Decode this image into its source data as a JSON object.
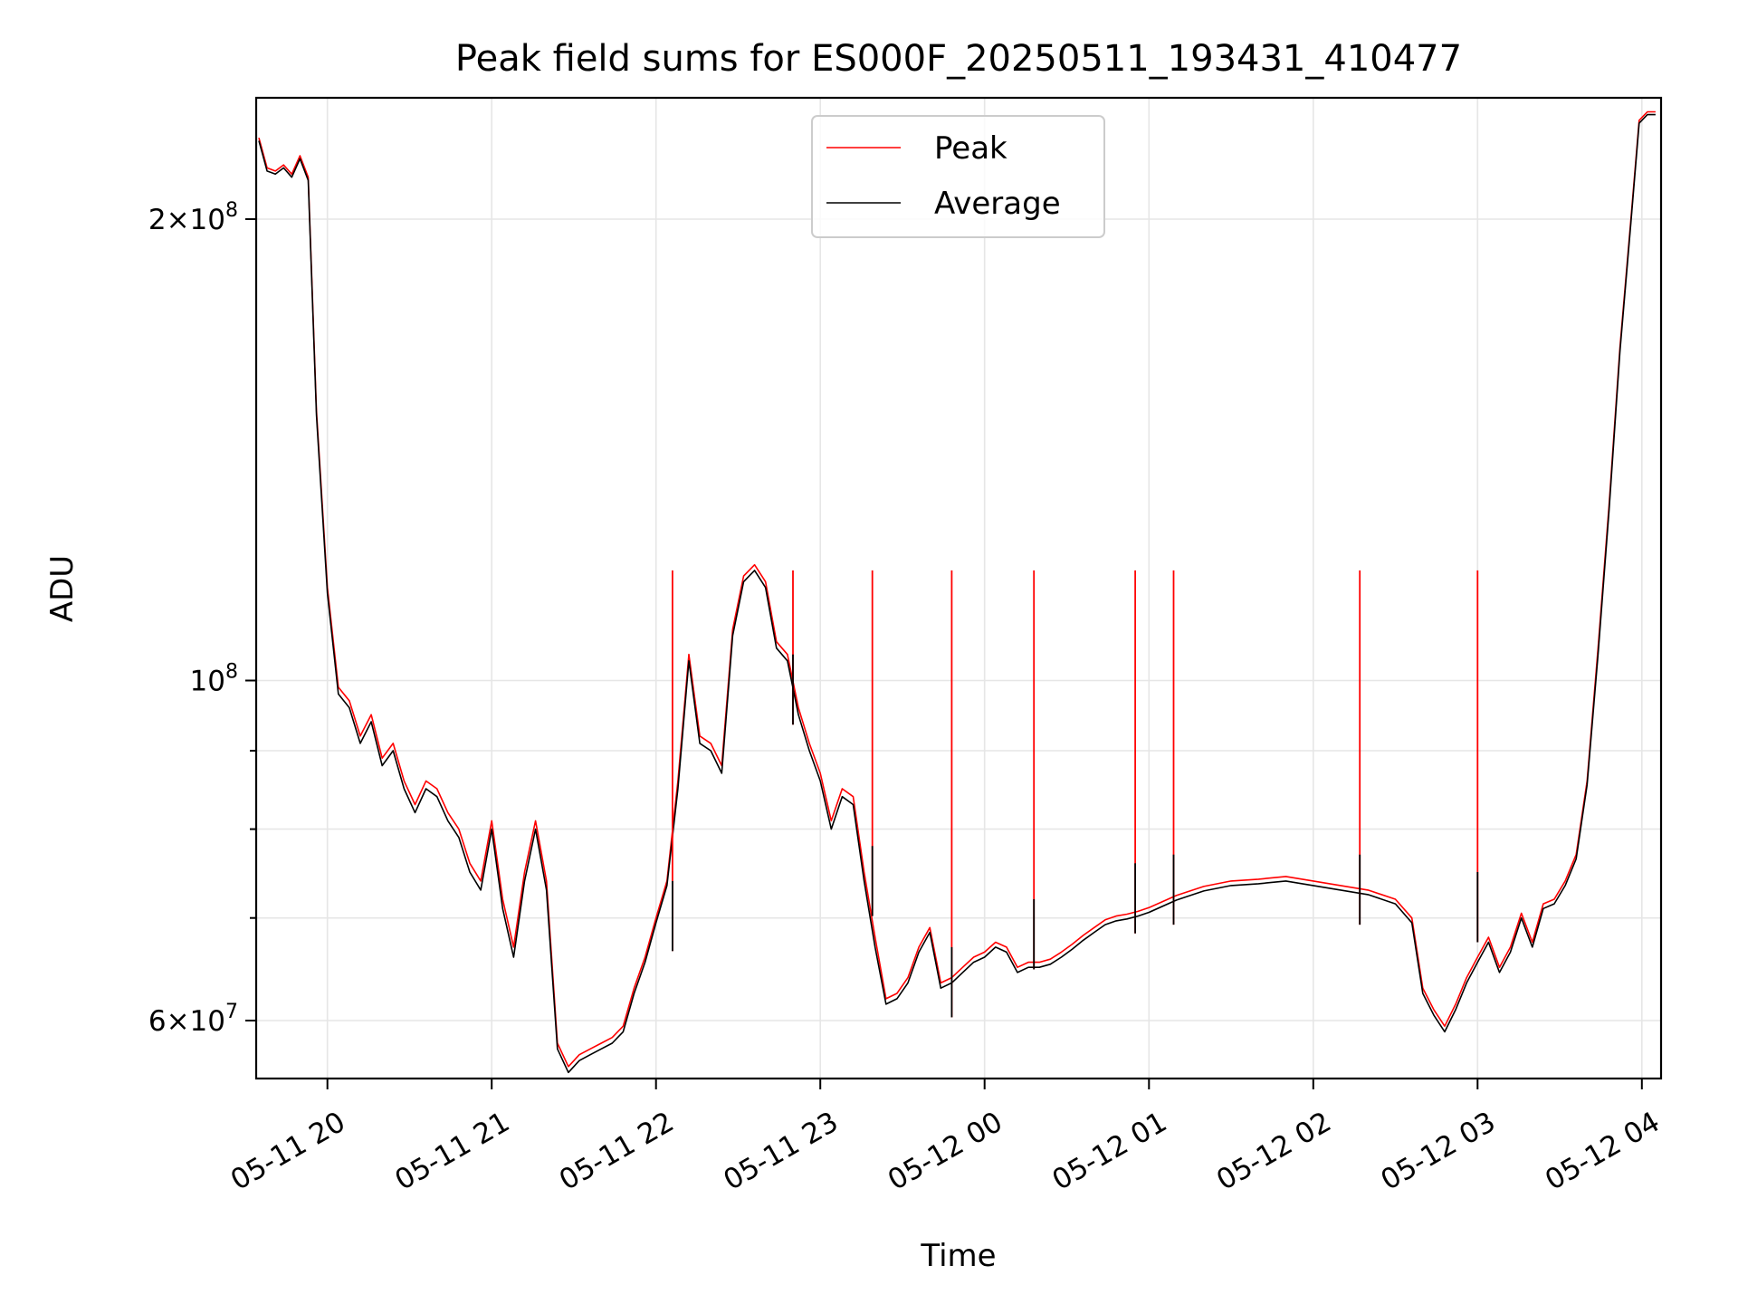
{
  "chart_data": {
    "type": "line",
    "title": "Peak field sums for ES000F_20250511_193431_410477",
    "xlabel": "Time",
    "ylabel": "ADU",
    "yscale": "log",
    "xlim": [
      "2025-05-11 19:34",
      "2025-05-12 04:07"
    ],
    "ylim": [
      55000000,
      240000000
    ],
    "grid": true,
    "legend_position": "top-center",
    "x_ticks": [
      {
        "value": "2025-05-11 20:00",
        "label": "05-11 20"
      },
      {
        "value": "2025-05-11 21:00",
        "label": "05-11 21"
      },
      {
        "value": "2025-05-11 22:00",
        "label": "05-11 22"
      },
      {
        "value": "2025-05-11 23:00",
        "label": "05-11 23"
      },
      {
        "value": "2025-05-12 00:00",
        "label": "05-12 00"
      },
      {
        "value": "2025-05-12 01:00",
        "label": "05-12 01"
      },
      {
        "value": "2025-05-12 02:00",
        "label": "05-12 02"
      },
      {
        "value": "2025-05-12 03:00",
        "label": "05-12 03"
      },
      {
        "value": "2025-05-12 04:00",
        "label": "05-12 04"
      }
    ],
    "y_ticks": [
      {
        "value": 60000000,
        "base": "6",
        "exp": "7"
      },
      {
        "value": 100000000,
        "base": "",
        "exp": "8"
      },
      {
        "value": 200000000,
        "base": "2",
        "exp": "8"
      }
    ],
    "y_minor_ticks": [
      70000000,
      80000000,
      90000000
    ],
    "x": [
      "2025-05-11 19:35",
      "2025-05-11 19:38",
      "2025-05-11 19:41",
      "2025-05-11 19:44",
      "2025-05-11 19:47",
      "2025-05-11 19:50",
      "2025-05-11 19:53",
      "2025-05-11 19:56",
      "2025-05-11 20:00",
      "2025-05-11 20:04",
      "2025-05-11 20:08",
      "2025-05-11 20:12",
      "2025-05-11 20:16",
      "2025-05-11 20:20",
      "2025-05-11 20:24",
      "2025-05-11 20:28",
      "2025-05-11 20:32",
      "2025-05-11 20:36",
      "2025-05-11 20:40",
      "2025-05-11 20:44",
      "2025-05-11 20:48",
      "2025-05-11 20:52",
      "2025-05-11 20:56",
      "2025-05-11 21:00",
      "2025-05-11 21:04",
      "2025-05-11 21:08",
      "2025-05-11 21:12",
      "2025-05-11 21:16",
      "2025-05-11 21:20",
      "2025-05-11 21:24",
      "2025-05-11 21:28",
      "2025-05-11 21:32",
      "2025-05-11 21:36",
      "2025-05-11 21:40",
      "2025-05-11 21:44",
      "2025-05-11 21:48",
      "2025-05-11 21:52",
      "2025-05-11 21:56",
      "2025-05-11 22:00",
      "2025-05-11 22:04",
      "2025-05-11 22:08",
      "2025-05-11 22:12",
      "2025-05-11 22:16",
      "2025-05-11 22:20",
      "2025-05-11 22:24",
      "2025-05-11 22:28",
      "2025-05-11 22:32",
      "2025-05-11 22:36",
      "2025-05-11 22:40",
      "2025-05-11 22:44",
      "2025-05-11 22:48",
      "2025-05-11 22:52",
      "2025-05-11 22:56",
      "2025-05-11 23:00",
      "2025-05-11 23:04",
      "2025-05-11 23:08",
      "2025-05-11 23:12",
      "2025-05-11 23:16",
      "2025-05-11 23:20",
      "2025-05-11 23:24",
      "2025-05-11 23:28",
      "2025-05-11 23:32",
      "2025-05-11 23:36",
      "2025-05-11 23:40",
      "2025-05-11 23:44",
      "2025-05-11 23:48",
      "2025-05-11 23:52",
      "2025-05-11 23:56",
      "2025-05-12 00:00",
      "2025-05-12 00:04",
      "2025-05-12 00:08",
      "2025-05-12 00:12",
      "2025-05-12 00:16",
      "2025-05-12 00:20",
      "2025-05-12 00:24",
      "2025-05-12 00:28",
      "2025-05-12 00:32",
      "2025-05-12 00:36",
      "2025-05-12 00:40",
      "2025-05-12 00:44",
      "2025-05-12 00:48",
      "2025-05-12 00:52",
      "2025-05-12 00:56",
      "2025-05-12 01:00",
      "2025-05-12 01:10",
      "2025-05-12 01:20",
      "2025-05-12 01:30",
      "2025-05-12 01:40",
      "2025-05-12 01:50",
      "2025-05-12 02:00",
      "2025-05-12 02:10",
      "2025-05-12 02:20",
      "2025-05-12 02:30",
      "2025-05-12 02:36",
      "2025-05-12 02:40",
      "2025-05-12 02:44",
      "2025-05-12 02:48",
      "2025-05-12 02:52",
      "2025-05-12 02:56",
      "2025-05-12 03:00",
      "2025-05-12 03:04",
      "2025-05-12 03:08",
      "2025-05-12 03:12",
      "2025-05-12 03:16",
      "2025-05-12 03:20",
      "2025-05-12 03:24",
      "2025-05-12 03:28",
      "2025-05-12 03:32",
      "2025-05-12 03:36",
      "2025-05-12 03:40",
      "2025-05-12 03:44",
      "2025-05-12 03:48",
      "2025-05-12 03:52",
      "2025-05-12 03:56",
      "2025-05-12 03:59",
      "2025-05-12 04:02",
      "2025-05-12 04:05"
    ],
    "series": [
      {
        "name": "Peak",
        "color": "#ff0000",
        "values": [
          226000000,
          216000000,
          215000000,
          217000000,
          214000000,
          220000000,
          213000000,
          150000000,
          115000000,
          99000000,
          97000000,
          92000000,
          95000000,
          89000000,
          91000000,
          86000000,
          83000000,
          86000000,
          85000000,
          82000000,
          80000000,
          76000000,
          74000000,
          81000000,
          72000000,
          67000000,
          75000000,
          81000000,
          74000000,
          58000000,
          56000000,
          57000000,
          57500000,
          58000000,
          58500000,
          59500000,
          63000000,
          66000000,
          70000000,
          74000000,
          86000000,
          104000000,
          92000000,
          91000000,
          88000000,
          108000000,
          117000000,
          119000000,
          116000000,
          106000000,
          104000000,
          96000000,
          91000000,
          87000000,
          81000000,
          85000000,
          84000000,
          75000000,
          68000000,
          62000000,
          62500000,
          64000000,
          67000000,
          69000000,
          63500000,
          64000000,
          65000000,
          66000000,
          66500000,
          67500000,
          67000000,
          65000000,
          65500000,
          65500000,
          65800000,
          66500000,
          67300000,
          68200000,
          69000000,
          69800000,
          70200000,
          70400000,
          70700000,
          71100000,
          72400000,
          73400000,
          74000000,
          74200000,
          74500000,
          74000000,
          73500000,
          73000000,
          72000000,
          70000000,
          63000000,
          61000000,
          59500000,
          61500000,
          64000000,
          66000000,
          68000000,
          65000000,
          67000000,
          70500000,
          67500000,
          71500000,
          72000000,
          74000000,
          77000000,
          86000000,
          105000000,
          130000000,
          165000000,
          200000000,
          232000000,
          235000000,
          235000000
        ]
      },
      {
        "name": "Average",
        "color": "#000000",
        "values": [
          225000000,
          215000000,
          214000000,
          216000000,
          213000000,
          219000000,
          212000000,
          149000000,
          114000000,
          98000000,
          96000000,
          91000000,
          94000000,
          88000000,
          90000000,
          85000000,
          82000000,
          85000000,
          84000000,
          81000000,
          79000000,
          75000000,
          73000000,
          80000000,
          71000000,
          66000000,
          74000000,
          80000000,
          73000000,
          57500000,
          55500000,
          56500000,
          57000000,
          57500000,
          58000000,
          59000000,
          62500000,
          65500000,
          69500000,
          73500000,
          85000000,
          103000000,
          91000000,
          90000000,
          87000000,
          107000000,
          116000000,
          118000000,
          115000000,
          105000000,
          103000000,
          95000000,
          90000000,
          86000000,
          80000000,
          84000000,
          83000000,
          74000000,
          67000000,
          61500000,
          62000000,
          63500000,
          66500000,
          68500000,
          63000000,
          63500000,
          64500000,
          65500000,
          66000000,
          67000000,
          66500000,
          64500000,
          65000000,
          65000000,
          65300000,
          66000000,
          66800000,
          67700000,
          68500000,
          69300000,
          69700000,
          69900000,
          70200000,
          70600000,
          71900000,
          72900000,
          73500000,
          73700000,
          74000000,
          73500000,
          73000000,
          72500000,
          71500000,
          69500000,
          62500000,
          60500000,
          59000000,
          61000000,
          63500000,
          65500000,
          67500000,
          64500000,
          66500000,
          70000000,
          67000000,
          71000000,
          71500000,
          73500000,
          76500000,
          85500000,
          104000000,
          129000000,
          164000000,
          199000000,
          231000000,
          234000000,
          234000000
        ]
      }
    ],
    "spikes": [
      {
        "x": "2025-05-11 22:06",
        "peak": 118000000,
        "average": 74000000
      },
      {
        "x": "2025-05-11 22:50",
        "peak": 118000000,
        "average": 104000000
      },
      {
        "x": "2025-05-11 23:19",
        "peak": 118000000,
        "average": 78000000
      },
      {
        "x": "2025-05-11 23:48",
        "peak": 118000000,
        "average": 67000000
      },
      {
        "x": "2025-05-12 00:18",
        "peak": 118000000,
        "average": 72000000
      },
      {
        "x": "2025-05-12 00:55",
        "peak": 118000000,
        "average": 76000000
      },
      {
        "x": "2025-05-12 01:09",
        "peak": 118000000,
        "average": 77000000
      },
      {
        "x": "2025-05-12 02:17",
        "peak": 118000000,
        "average": 77000000
      },
      {
        "x": "2025-05-12 03:00",
        "peak": 118000000,
        "average": 75000000
      }
    ]
  }
}
